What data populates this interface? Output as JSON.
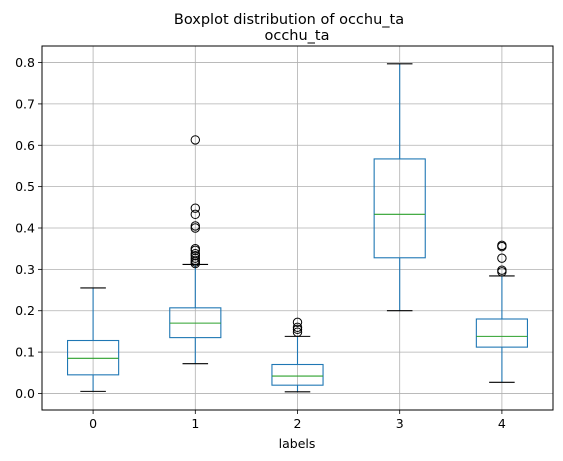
{
  "chart_data": {
    "type": "boxplot",
    "suptitle": "Boxplot distribution of occhu_ta",
    "title": "occhu_ta",
    "xlabel": "labels",
    "ylabel": "",
    "categories": [
      "0",
      "1",
      "2",
      "3",
      "4"
    ],
    "ylim": [
      -0.04,
      0.84
    ],
    "yticks": [
      0.0,
      0.1,
      0.2,
      0.3,
      0.4,
      0.5,
      0.6,
      0.7,
      0.8
    ],
    "ytick_labels": [
      "0.0",
      "0.1",
      "0.2",
      "0.3",
      "0.4",
      "0.5",
      "0.6",
      "0.7",
      "0.8"
    ],
    "grid": true,
    "boxes": [
      {
        "label": "0",
        "whislo": 0.005,
        "q1": 0.045,
        "med": 0.085,
        "q3": 0.128,
        "whishi": 0.255,
        "fliers": []
      },
      {
        "label": "1",
        "whislo": 0.072,
        "q1": 0.135,
        "med": 0.17,
        "q3": 0.207,
        "whishi": 0.312,
        "fliers": [
          0.314,
          0.318,
          0.322,
          0.327,
          0.333,
          0.338,
          0.346,
          0.35,
          0.4,
          0.405,
          0.433,
          0.448,
          0.613
        ]
      },
      {
        "label": "2",
        "whislo": 0.004,
        "q1": 0.02,
        "med": 0.042,
        "q3": 0.07,
        "whishi": 0.138,
        "fliers": [
          0.148,
          0.155,
          0.16,
          0.172
        ]
      },
      {
        "label": "3",
        "whislo": 0.2,
        "q1": 0.328,
        "med": 0.433,
        "q3": 0.567,
        "whishi": 0.797,
        "fliers": []
      },
      {
        "label": "4",
        "whislo": 0.027,
        "q1": 0.112,
        "med": 0.138,
        "q3": 0.18,
        "whishi": 0.284,
        "fliers": [
          0.294,
          0.298,
          0.327,
          0.355,
          0.358
        ]
      }
    ],
    "colors": {
      "box": "#1f77b4",
      "median": "#2ca02c",
      "whisker": "#1f77b4",
      "cap": "#000000",
      "flier": "#000000",
      "grid": "#b0b0b0",
      "axes": "#000000"
    }
  }
}
